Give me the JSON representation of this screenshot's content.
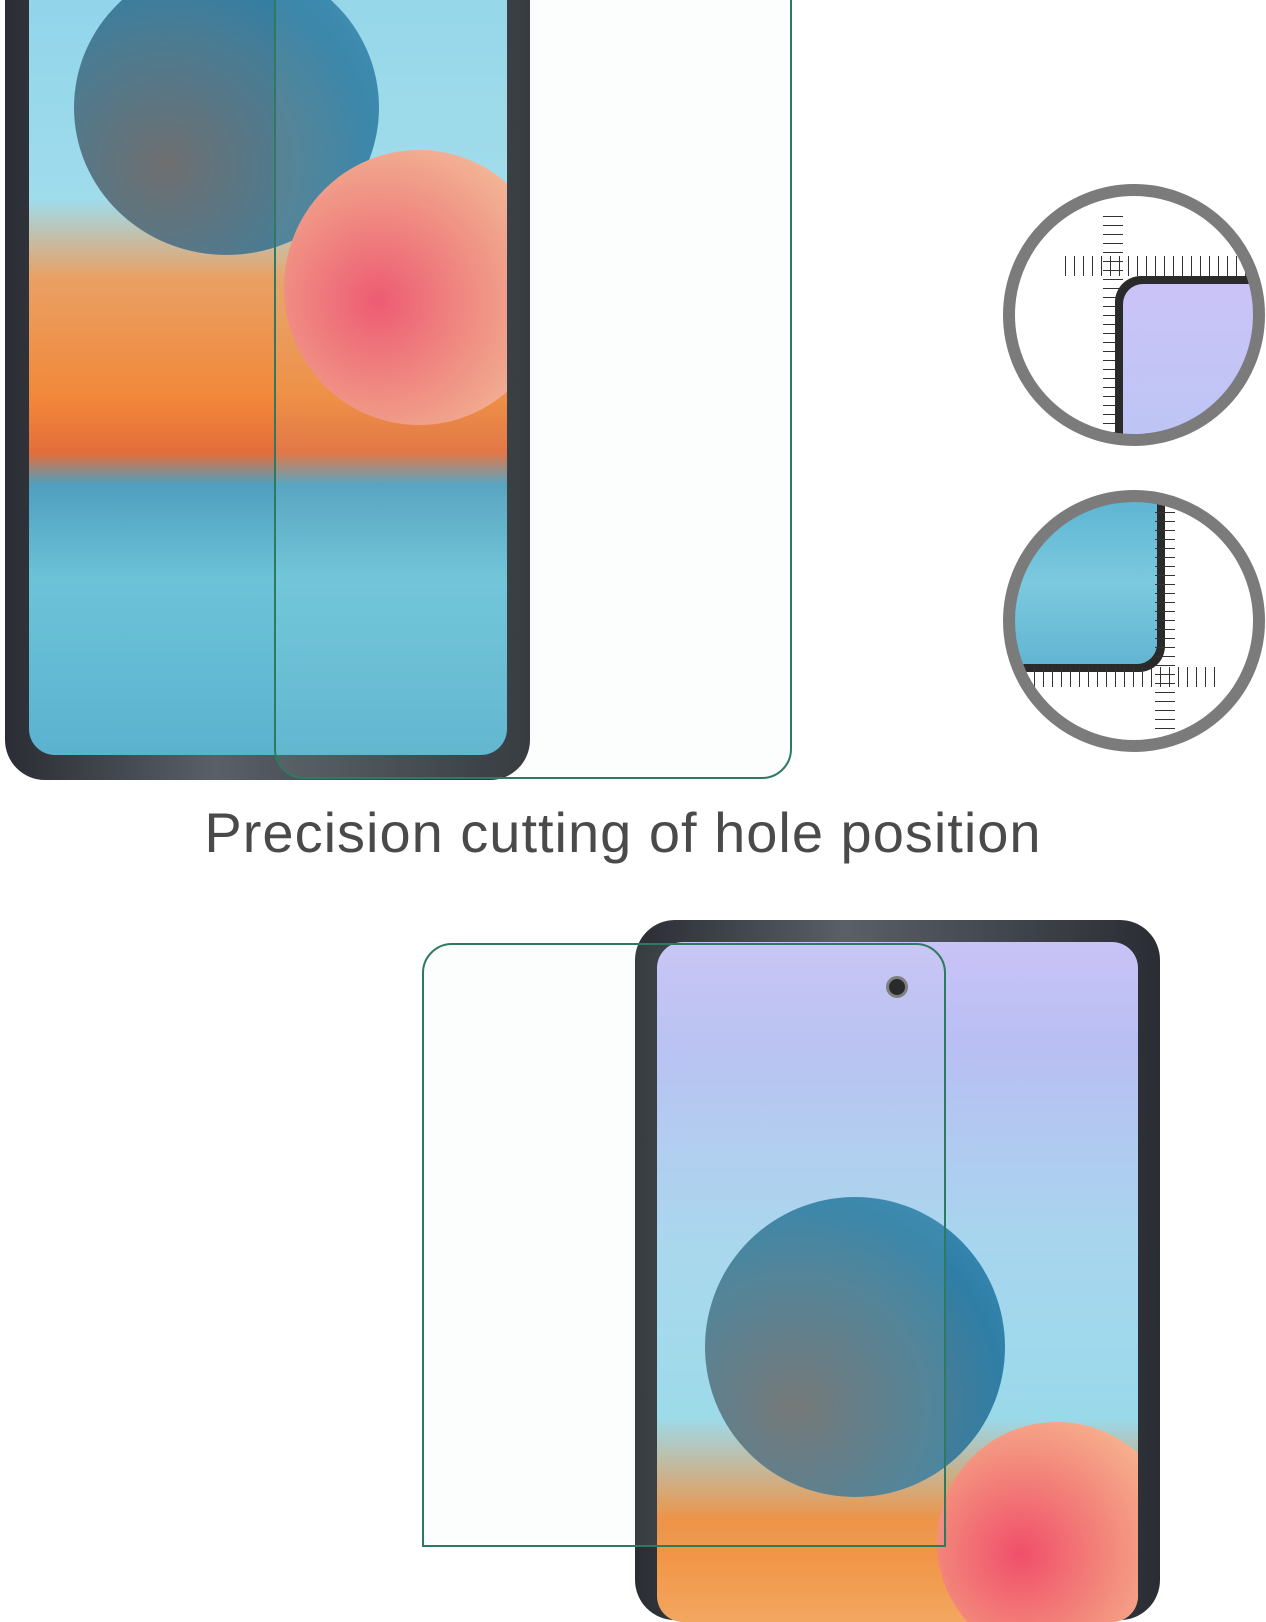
{
  "caption": "Precision cutting of hole position",
  "colors": {
    "glass_edge": "#2e7a60",
    "text": "#4a4a4a",
    "magnifier_ring": "#7b7b7b"
  },
  "icons": [
    "ruler-icon",
    "camera-hole-icon"
  ]
}
